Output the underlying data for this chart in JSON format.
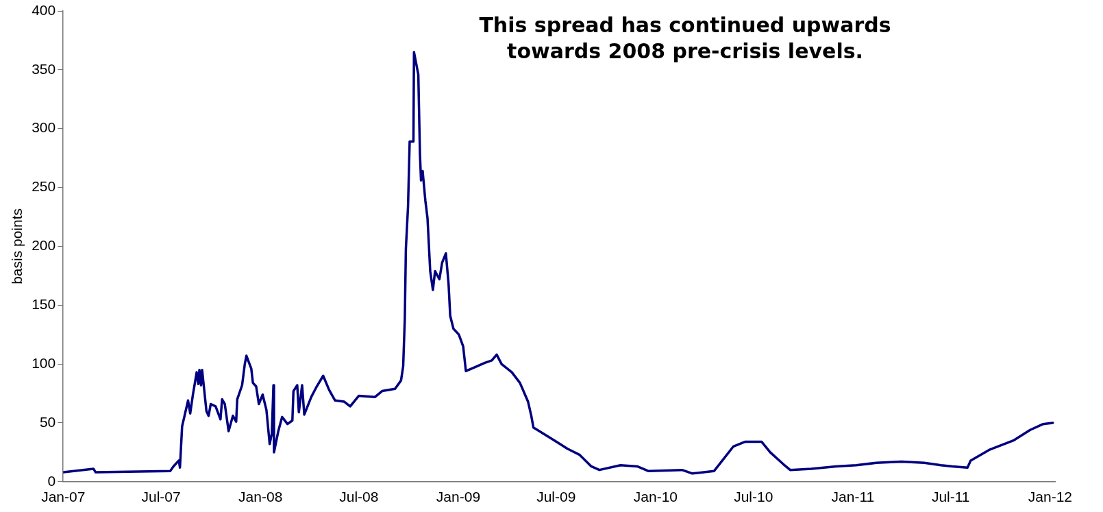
{
  "chart_data": {
    "type": "line",
    "ylabel": "basis points",
    "annotations": [
      "This spread has continued upwards\ntowards 2008 pre-crisis levels."
    ],
    "xlim": [
      "2007-01-01",
      "2012-01-10"
    ],
    "xticks": [
      {
        "value": "2007-01-01",
        "label": "Jan-07"
      },
      {
        "value": "2007-07-01",
        "label": "Jul-07"
      },
      {
        "value": "2008-01-01",
        "label": "Jan-08"
      },
      {
        "value": "2008-07-01",
        "label": "Jul-08"
      },
      {
        "value": "2009-01-01",
        "label": "Jan-09"
      },
      {
        "value": "2009-07-01",
        "label": "Jul-09"
      },
      {
        "value": "2010-01-01",
        "label": "Jan-10"
      },
      {
        "value": "2010-07-01",
        "label": "Jul-10"
      },
      {
        "value": "2011-01-01",
        "label": "Jan-11"
      },
      {
        "value": "2011-07-01",
        "label": "Jul-11"
      },
      {
        "value": "2012-01-01",
        "label": "Jan-12"
      }
    ],
    "ylim": [
      0,
      400
    ],
    "yticks": [
      0,
      50,
      100,
      150,
      200,
      250,
      300,
      350,
      400
    ],
    "grid": false,
    "legend": false,
    "marker": "none",
    "line_style": "solid",
    "series": [
      {
        "color": "#000080",
        "x": [
          "2007-01-01",
          "2007-02-26",
          "2007-03-02",
          "2007-07-18",
          "2007-07-24",
          "2007-08-03",
          "2007-08-05",
          "2007-08-09",
          "2007-08-20",
          "2007-08-24",
          "2007-08-29",
          "2007-09-05",
          "2007-09-08",
          "2007-09-10",
          "2007-09-13",
          "2007-09-15",
          "2007-09-23",
          "2007-09-27",
          "2007-10-01",
          "2007-10-10",
          "2007-10-19",
          "2007-10-22",
          "2007-10-27",
          "2007-11-03",
          "2007-11-11",
          "2007-11-17",
          "2007-11-19",
          "2007-11-28",
          "2007-12-03",
          "2007-12-06",
          "2007-12-15",
          "2007-12-18",
          "2007-12-24",
          "2007-12-29",
          "2008-01-05",
          "2008-01-12",
          "2008-01-18",
          "2008-01-22",
          "2008-01-25",
          "2008-01-26",
          "2008-02-03",
          "2008-02-10",
          "2008-02-20",
          "2008-02-29",
          "2008-03-02",
          "2008-03-09",
          "2008-03-12",
          "2008-03-18",
          "2008-03-22",
          "2008-04-04",
          "2008-04-13",
          "2008-04-26",
          "2008-05-07",
          "2008-05-18",
          "2008-06-04",
          "2008-06-15",
          "2008-07-01",
          "2008-07-31",
          "2008-08-13",
          "2008-09-06",
          "2008-09-17",
          "2008-09-21",
          "2008-09-24",
          "2008-09-26",
          "2008-09-30",
          "2008-10-03",
          "2008-10-10",
          "2008-10-11",
          "2008-10-19",
          "2008-10-22",
          "2008-10-24",
          "2008-10-27",
          "2008-11-01",
          "2008-11-05",
          "2008-11-10",
          "2008-11-15",
          "2008-11-19",
          "2008-11-27",
          "2008-12-02",
          "2008-12-09",
          "2008-12-14",
          "2008-12-17",
          "2008-12-23",
          "2009-01-02",
          "2009-01-10",
          "2009-01-15",
          "2009-02-04",
          "2009-02-19",
          "2009-03-04",
          "2009-03-13",
          "2009-03-22",
          "2009-04-10",
          "2009-04-25",
          "2009-05-10",
          "2009-05-16",
          "2009-05-20",
          "2009-06-07",
          "2009-06-28",
          "2009-07-22",
          "2009-08-13",
          "2009-09-04",
          "2009-09-19",
          "2009-10-28",
          "2009-11-28",
          "2009-12-19",
          "2010-02-19",
          "2010-03-10",
          "2010-04-19",
          "2010-05-01",
          "2010-05-25",
          "2010-06-16",
          "2010-07-16",
          "2010-08-01",
          "2010-08-25",
          "2010-09-07",
          "2010-10-16",
          "2010-12-01",
          "2011-01-07",
          "2011-02-13",
          "2011-04-01",
          "2011-05-13",
          "2011-06-13",
          "2011-07-04",
          "2011-08-01",
          "2011-08-07",
          "2011-09-10",
          "2011-10-25",
          "2011-11-25",
          "2011-12-19",
          "2012-01-06"
        ],
        "values": [
          8,
          11,
          8,
          9,
          13,
          18,
          12,
          47,
          69,
          58,
          74,
          93,
          83,
          95,
          82,
          95,
          60,
          56,
          66,
          64,
          53,
          70,
          66,
          43,
          56,
          51,
          70,
          82,
          100,
          107,
          96,
          84,
          81,
          66,
          74,
          61,
          32,
          41,
          82,
          25,
          43,
          55,
          49,
          52,
          77,
          82,
          59,
          82,
          57,
          72,
          80,
          90,
          78,
          69,
          68,
          64,
          73,
          72,
          77,
          79,
          86,
          98,
          138,
          198,
          234,
          289,
          289,
          365,
          346,
          279,
          256,
          264,
          239,
          224,
          179,
          163,
          179,
          172,
          186,
          194,
          168,
          141,
          130,
          125,
          115,
          94,
          98,
          101,
          103,
          108,
          100,
          93,
          84,
          68,
          56,
          46,
          41,
          35,
          28,
          23,
          13,
          10,
          14,
          13,
          9,
          10,
          7,
          9,
          16,
          30,
          34,
          34,
          25,
          15,
          10,
          11,
          13,
          14,
          16,
          17,
          16,
          14,
          13,
          12,
          18,
          27,
          35,
          44,
          49,
          50
        ]
      }
    ]
  }
}
